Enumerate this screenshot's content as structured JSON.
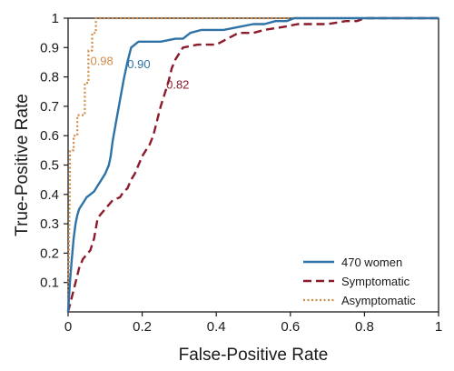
{
  "chart_data": {
    "type": "line",
    "xlabel": "False-Positive Rate",
    "ylabel": "True-Positive Rate",
    "xlim": [
      0,
      1
    ],
    "ylim": [
      0,
      1
    ],
    "x_ticks": [
      "0",
      "0.2",
      "0.4",
      "0.6",
      "0.8",
      "1"
    ],
    "y_ticks": [
      "0.1",
      "0.2",
      "0.3",
      "0.4",
      "0.5",
      "0.6",
      "0.7",
      "0.8",
      "0.9",
      "1"
    ],
    "grid": false,
    "legend_position": "bottom-right",
    "series": [
      {
        "name": "470 women",
        "style": "solid",
        "color": "#2f73a6",
        "auc_label": "0.90",
        "x": [
          0,
          0.005,
          0.01,
          0.015,
          0.02,
          0.025,
          0.03,
          0.04,
          0.05,
          0.06,
          0.07,
          0.08,
          0.09,
          0.1,
          0.11,
          0.115,
          0.12,
          0.13,
          0.14,
          0.15,
          0.16,
          0.17,
          0.19,
          0.21,
          0.25,
          0.29,
          0.31,
          0.33,
          0.36,
          0.42,
          0.46,
          0.5,
          0.53,
          0.56,
          0.59,
          0.61,
          0.7,
          0.8,
          1
        ],
        "y": [
          0,
          0.1,
          0.18,
          0.25,
          0.3,
          0.33,
          0.35,
          0.37,
          0.39,
          0.4,
          0.41,
          0.43,
          0.45,
          0.47,
          0.5,
          0.53,
          0.58,
          0.65,
          0.72,
          0.79,
          0.85,
          0.9,
          0.92,
          0.92,
          0.92,
          0.93,
          0.93,
          0.95,
          0.96,
          0.96,
          0.97,
          0.98,
          0.98,
          0.99,
          0.99,
          1,
          1,
          1,
          1
        ]
      },
      {
        "name": "Symptomatic",
        "style": "dashed",
        "color": "#8b1a2b",
        "auc_label": "0.82",
        "x": [
          0,
          0.01,
          0.02,
          0.03,
          0.04,
          0.06,
          0.07,
          0.08,
          0.1,
          0.12,
          0.14,
          0.15,
          0.16,
          0.17,
          0.18,
          0.19,
          0.2,
          0.21,
          0.22,
          0.23,
          0.24,
          0.25,
          0.26,
          0.27,
          0.28,
          0.29,
          0.3,
          0.31,
          0.35,
          0.4,
          0.43,
          0.46,
          0.5,
          0.53,
          0.58,
          0.62,
          0.66,
          0.7,
          0.75,
          0.78,
          0.8,
          1
        ],
        "y": [
          0,
          0.05,
          0.1,
          0.15,
          0.18,
          0.21,
          0.25,
          0.32,
          0.35,
          0.38,
          0.39,
          0.41,
          0.42,
          0.45,
          0.47,
          0.5,
          0.53,
          0.55,
          0.57,
          0.6,
          0.65,
          0.7,
          0.74,
          0.78,
          0.83,
          0.86,
          0.88,
          0.9,
          0.91,
          0.91,
          0.93,
          0.95,
          0.95,
          0.96,
          0.97,
          0.98,
          0.98,
          0.98,
          0.99,
          0.99,
          1,
          1
        ]
      },
      {
        "name": "Asymptomatic",
        "style": "dotted",
        "color": "#d08b47",
        "auc_label": "0.98",
        "x": [
          0,
          0.005,
          0.005,
          0.015,
          0.015,
          0.025,
          0.025,
          0.045,
          0.045,
          0.055,
          0.055,
          0.065,
          0.065,
          0.075,
          0.075,
          1
        ],
        "y": [
          0,
          0.45,
          0.55,
          0.55,
          0.6,
          0.6,
          0.67,
          0.67,
          0.78,
          0.78,
          0.89,
          0.89,
          0.95,
          0.95,
          1,
          1
        ]
      }
    ]
  }
}
